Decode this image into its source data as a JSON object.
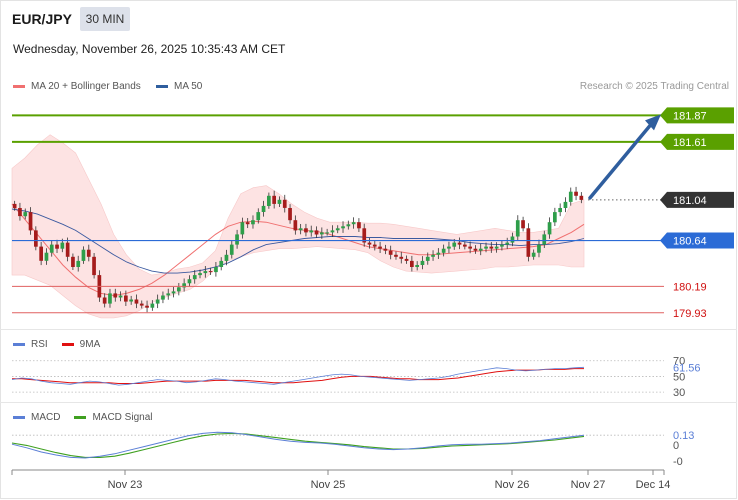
{
  "header": {
    "symbol": "EUR/JPY",
    "timeframe": "30 MIN",
    "datetime": "Wednesday, November 26, 2025 10:35:43 AM CET"
  },
  "legend": {
    "ma20": "MA 20 + Bollinger Bands",
    "ma50": "MA 50",
    "credit": "Research © 2025 Trading Central"
  },
  "colors": {
    "ma20": "#f07070",
    "ma50": "#3c5aa0",
    "bollinger_fill": "#fde3e3",
    "candle_up": "#2e9e4a",
    "candle_down": "#a61c1c",
    "resistance": "#5aa000",
    "pivot": "#2b6bd6",
    "support": "#e06060",
    "arrow": "#2f5e9e",
    "current": "#333333",
    "rsi": "#5b7fd6",
    "rsi_ma": "#e01010",
    "macd": "#5b7fd6",
    "macd_signal": "#3fa020"
  },
  "rsi_panel": {
    "label": "RSI",
    "ma_label": "9MA",
    "levels": [
      "70",
      "50",
      "30"
    ],
    "current_label": "61.56"
  },
  "macd_panel": {
    "label": "MACD",
    "signal_label": "MACD Signal",
    "levels": [
      "0",
      "-0"
    ],
    "current_label": "0.13"
  },
  "x_axis": {
    "labels": [
      "Nov 23",
      "Nov 25",
      "Nov 26",
      "Nov 27",
      "Dec 14"
    ]
  },
  "chart_data": {
    "type": "candlestick",
    "instrument": "EUR/JPY",
    "interval": "30 MIN",
    "y_range": [
      179.8,
      182.1
    ],
    "levels": [
      {
        "value": 181.87,
        "label": "181.87",
        "kind": "resistance"
      },
      {
        "value": 181.61,
        "label": "181.61",
        "kind": "resistance"
      },
      {
        "value": 181.04,
        "label": "181.04",
        "kind": "current"
      },
      {
        "value": 180.64,
        "label": "180.64",
        "kind": "pivot"
      },
      {
        "value": 180.19,
        "label": "180.19",
        "kind": "support"
      },
      {
        "value": 179.93,
        "label": "179.93",
        "kind": "support"
      }
    ],
    "close": [
      180.96,
      180.88,
      180.92,
      180.74,
      180.58,
      180.44,
      180.52,
      180.6,
      180.56,
      180.62,
      180.48,
      180.38,
      180.44,
      180.55,
      180.48,
      180.3,
      180.08,
      180.02,
      180.12,
      180.08,
      180.1,
      180.04,
      180.06,
      180.02,
      180.0,
      179.98,
      180.02,
      180.06,
      180.1,
      180.12,
      180.14,
      180.18,
      180.22,
      180.26,
      180.3,
      180.32,
      180.34,
      180.33,
      180.38,
      180.44,
      180.5,
      180.6,
      180.7,
      180.82,
      180.8,
      180.84,
      180.92,
      180.98,
      181.08,
      181.0,
      181.04,
      180.96,
      180.84,
      180.74,
      180.76,
      180.72,
      180.74,
      180.7,
      180.72,
      180.72,
      180.74,
      180.76,
      180.78,
      180.8,
      180.82,
      180.76,
      180.62,
      180.6,
      180.58,
      180.56,
      180.54,
      180.5,
      180.48,
      180.46,
      180.44,
      180.38,
      180.4,
      180.44,
      180.48,
      180.5,
      180.52,
      180.56,
      180.58,
      180.62,
      180.6,
      180.58,
      180.56,
      180.54,
      180.56,
      180.58,
      180.56,
      180.58,
      180.6,
      180.62,
      180.68,
      180.84,
      180.76,
      180.48,
      180.52,
      180.6,
      180.7,
      180.82,
      180.92,
      180.96,
      181.02,
      181.12,
      181.08,
      181.04
    ],
    "bollinger_upper": [
      181.35,
      181.45,
      181.58,
      181.68,
      181.6,
      181.5,
      181.25,
      181.0,
      180.7,
      180.5,
      180.36,
      180.3,
      180.32,
      180.36,
      180.38,
      180.42,
      180.54,
      180.86,
      181.1,
      181.16,
      181.18,
      181.1,
      181.0,
      180.92,
      180.86,
      180.82,
      180.82,
      180.82,
      180.81,
      180.81,
      180.8,
      180.78,
      180.76,
      180.74,
      180.72,
      180.7,
      180.72,
      180.74,
      180.76,
      180.74,
      180.72,
      180.72,
      180.74,
      180.76,
      181.0,
      181.04
    ],
    "bollinger_lower": [
      180.3,
      180.3,
      180.25,
      180.2,
      180.1,
      180.0,
      179.92,
      179.88,
      179.88,
      179.9,
      179.95,
      180.03,
      180.08,
      180.12,
      180.16,
      180.24,
      180.36,
      180.44,
      180.48,
      180.52,
      180.54,
      180.56,
      180.56,
      180.57,
      180.58,
      180.57,
      180.56,
      180.55,
      180.52,
      180.44,
      180.38,
      180.34,
      180.33,
      180.32,
      180.33,
      180.34,
      180.35,
      180.36,
      180.38,
      180.38,
      180.39,
      180.4,
      180.4,
      180.4,
      180.38,
      180.38
    ],
    "ma20": [
      181.0,
      180.85,
      180.7,
      180.55,
      180.4,
      180.28,
      180.18,
      180.12,
      180.1,
      180.12,
      180.16,
      180.22,
      180.3,
      180.4,
      180.5,
      180.6,
      180.7,
      180.78,
      180.82,
      180.83,
      180.82,
      180.79,
      180.76,
      180.74,
      180.73,
      180.7,
      180.66,
      180.62,
      180.58,
      180.56,
      180.54,
      180.52,
      180.5,
      180.5,
      180.51,
      180.52,
      180.53,
      180.54,
      180.55,
      180.56,
      180.57,
      180.58,
      180.6,
      180.66,
      180.72,
      180.8
    ],
    "ma50": [
      180.95,
      180.93,
      180.9,
      180.85,
      180.8,
      180.74,
      180.66,
      180.58,
      180.5,
      180.43,
      180.38,
      180.34,
      180.32,
      180.32,
      180.33,
      180.35,
      180.38,
      180.42,
      180.48,
      180.55,
      180.6,
      180.62,
      180.64,
      180.66,
      180.67,
      180.68,
      180.68,
      180.68,
      180.67,
      180.67,
      180.66,
      180.66,
      180.66,
      180.66,
      180.65,
      180.64,
      180.62,
      180.61,
      180.6,
      180.6,
      180.59,
      180.6,
      180.6,
      180.61,
      180.63,
      180.66
    ],
    "projection": {
      "from": 181.04,
      "to": 181.87
    },
    "rsi": [
      46,
      48,
      47,
      44,
      42,
      41,
      40,
      42,
      44,
      43,
      41,
      39,
      40,
      42,
      44,
      46,
      45,
      44,
      42,
      43,
      45,
      47,
      46,
      44,
      43,
      42,
      41,
      40,
      42,
      44,
      46,
      48,
      50,
      52,
      53,
      52,
      50,
      49,
      48,
      47,
      46,
      45,
      46,
      47,
      48,
      50,
      53,
      55,
      57,
      59,
      61,
      60,
      58,
      57,
      58,
      59,
      60,
      60,
      61,
      61.56
    ],
    "rsi_ma": [
      47,
      47,
      46,
      45,
      44,
      43,
      42,
      42,
      42,
      42,
      42,
      41,
      41,
      41,
      42,
      43,
      44,
      44,
      44,
      44,
      44,
      45,
      45,
      45,
      45,
      44,
      43,
      42,
      42,
      42,
      43,
      44,
      45,
      47,
      49,
      50,
      50,
      50,
      49,
      48,
      47,
      47,
      46,
      46,
      46,
      47,
      48,
      50,
      52,
      54,
      56,
      57,
      58,
      58,
      58,
      59,
      59,
      59,
      60,
      60
    ],
    "macd": [
      -0.02,
      -0.08,
      -0.15,
      -0.2,
      -0.24,
      -0.25,
      -0.22,
      -0.18,
      -0.12,
      -0.06,
      0.0,
      0.06,
      0.12,
      0.16,
      0.18,
      0.17,
      0.14,
      0.1,
      0.06,
      0.03,
      0.01,
      0.0,
      -0.02,
      -0.05,
      -0.08,
      -0.1,
      -0.11,
      -0.1,
      -0.08,
      -0.05,
      -0.03,
      -0.02,
      -0.02,
      -0.01,
      0.0,
      0.02,
      0.04,
      0.07,
      0.1,
      0.13
    ],
    "macd_signal": [
      0.0,
      -0.04,
      -0.1,
      -0.16,
      -0.21,
      -0.24,
      -0.24,
      -0.22,
      -0.17,
      -0.11,
      -0.05,
      0.01,
      0.07,
      0.12,
      0.15,
      0.16,
      0.15,
      0.12,
      0.09,
      0.06,
      0.03,
      0.01,
      -0.01,
      -0.03,
      -0.06,
      -0.08,
      -0.1,
      -0.1,
      -0.09,
      -0.07,
      -0.05,
      -0.04,
      -0.03,
      -0.02,
      -0.01,
      0.01,
      0.03,
      0.05,
      0.08,
      0.11
    ]
  }
}
